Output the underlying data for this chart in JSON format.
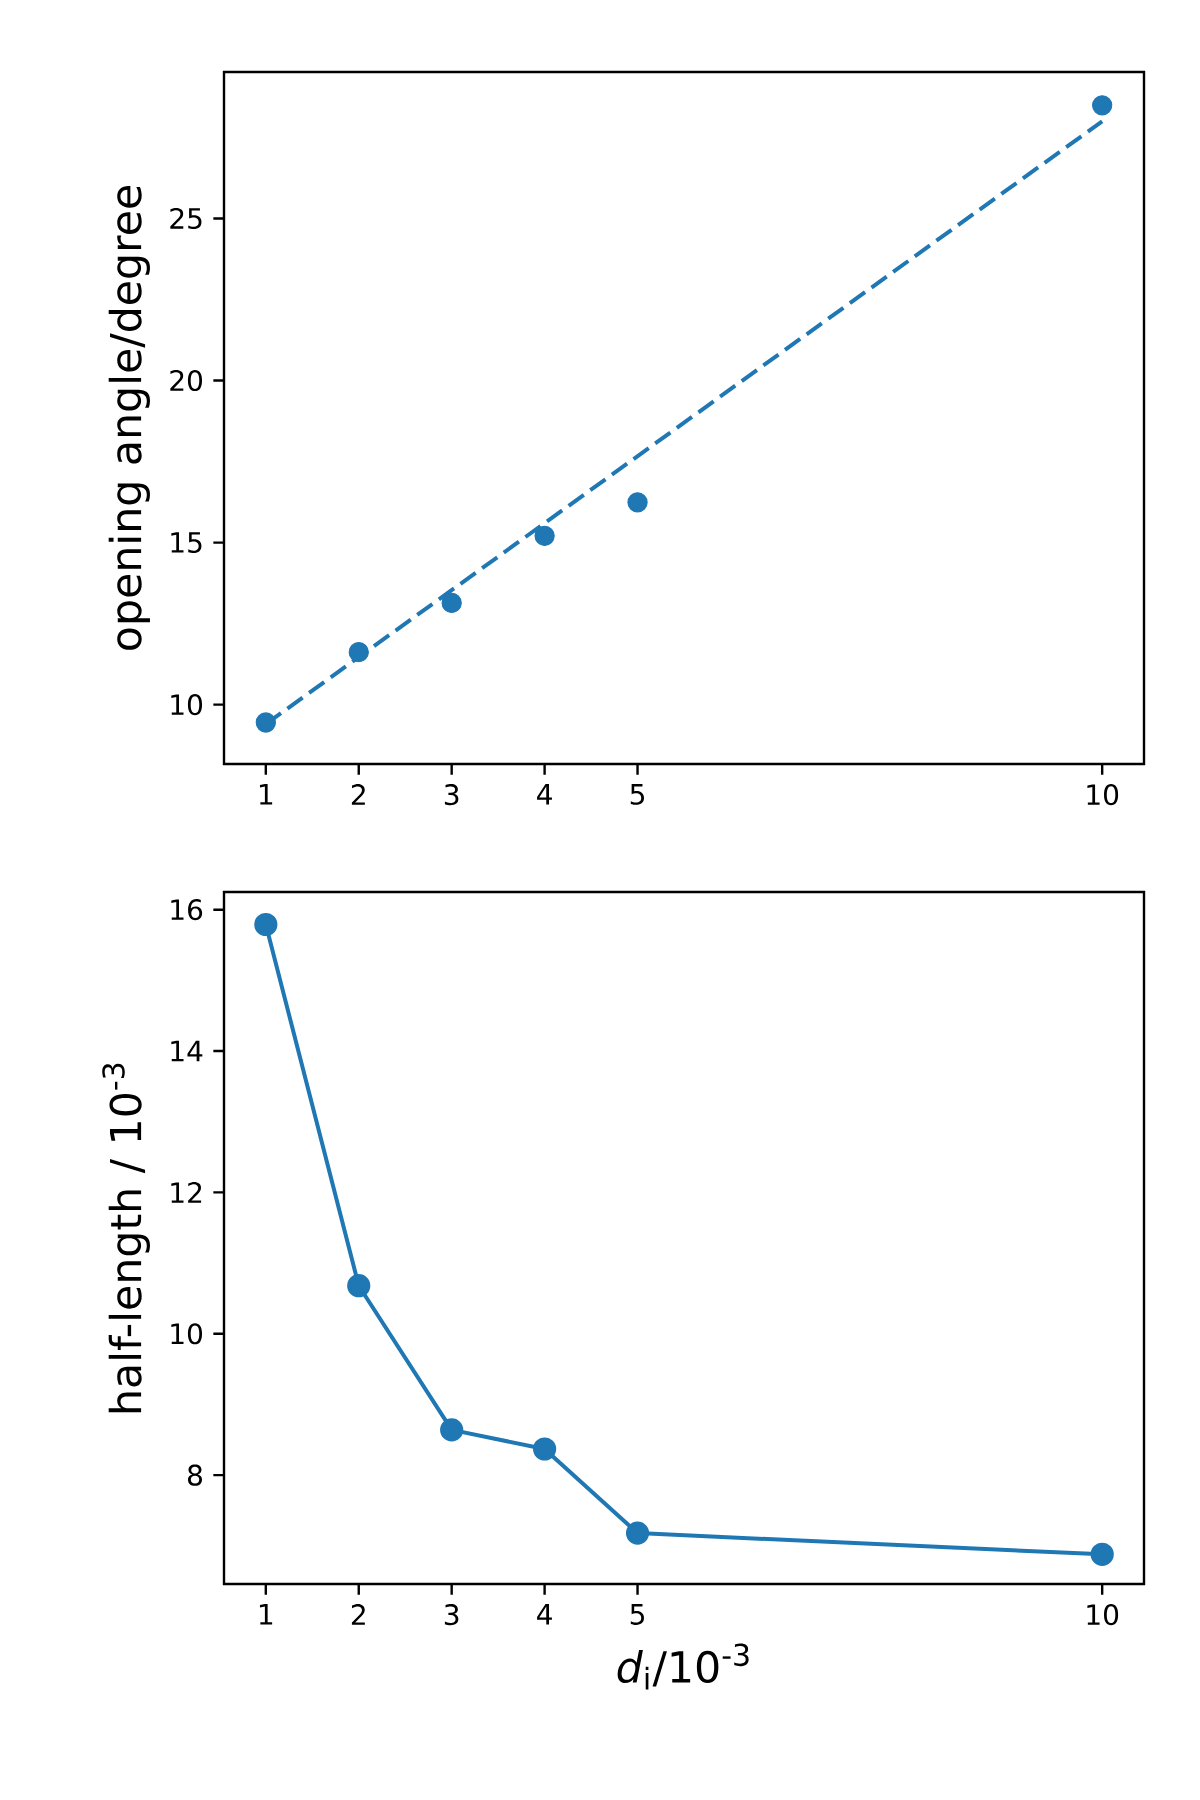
{
  "chart_data": [
    {
      "type": "scatter",
      "ylabel": "opening angle/degree",
      "x": [
        1,
        2,
        3,
        4,
        5,
        10
      ],
      "marker": "circle",
      "series": [
        {
          "type": "scatter",
          "color": "#1f77b4",
          "values": [
            9.45,
            11.62,
            13.14,
            15.21,
            16.24,
            28.49
          ]
        },
        {
          "type": "line",
          "x": [
            1,
            10
          ],
          "values": [
            9.4,
            28.0
          ],
          "color": "#1f77b4",
          "line_style": "dashed",
          "marker": "none"
        }
      ],
      "xlim": [
        0.55,
        10.45
      ],
      "ylim": [
        8.17,
        29.52
      ],
      "xticks": [
        1,
        2,
        3,
        4,
        5,
        10
      ],
      "yticks": [
        10,
        15,
        20,
        25
      ]
    },
    {
      "type": "line",
      "ylabel": "half-length / 10$^{-3}$",
      "xlabel": "*d*$_{i}$/10$^{-3}$",
      "x": [
        1,
        2,
        3,
        4,
        5,
        10
      ],
      "marker": "circle",
      "line_style": "solid",
      "series": [
        {
          "color": "#1f77b4",
          "values": [
            15.79,
            10.68,
            8.64,
            8.37,
            7.18,
            6.88
          ]
        }
      ],
      "xlim": [
        0.55,
        10.45
      ],
      "ylim": [
        6.46,
        16.25
      ],
      "xticks": [
        1,
        2,
        3,
        4,
        5,
        10
      ],
      "yticks": [
        8,
        10,
        12,
        14,
        16
      ]
    }
  ]
}
